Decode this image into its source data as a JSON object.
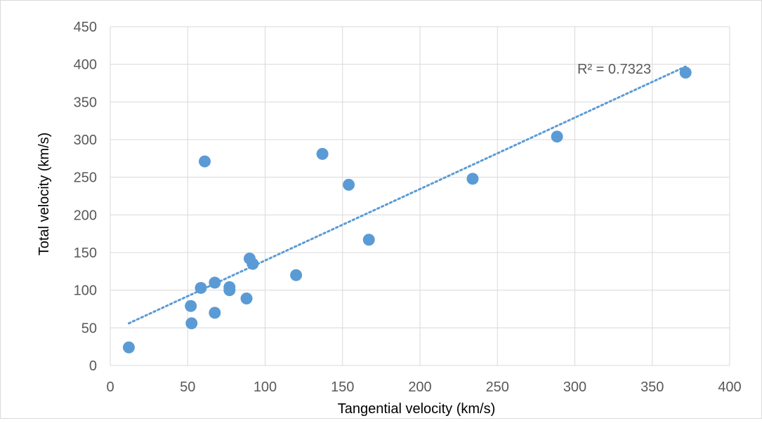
{
  "chart_data": {
    "type": "scatter",
    "title": "",
    "xlabel": "Tangential velocity (km/s)",
    "ylabel": "Total velocity (km/s)",
    "xlim": [
      0,
      400
    ],
    "ylim": [
      0,
      450
    ],
    "x_ticks": [
      0,
      50,
      100,
      150,
      200,
      250,
      300,
      350,
      400
    ],
    "y_ticks": [
      0,
      50,
      100,
      150,
      200,
      250,
      300,
      350,
      400,
      450
    ],
    "grid": "vertical and horizontal major gridlines",
    "legend": "none",
    "series": [
      {
        "color": "#5b9bd5",
        "points": [
          {
            "x": 12,
            "y": 24
          },
          {
            "x": 52,
            "y": 79
          },
          {
            "x": 52.5,
            "y": 56
          },
          {
            "x": 58.5,
            "y": 103
          },
          {
            "x": 61,
            "y": 271
          },
          {
            "x": 67.5,
            "y": 110
          },
          {
            "x": 67.5,
            "y": 70
          },
          {
            "x": 77,
            "y": 104
          },
          {
            "x": 77,
            "y": 100
          },
          {
            "x": 88,
            "y": 89
          },
          {
            "x": 90,
            "y": 142
          },
          {
            "x": 92,
            "y": 135
          },
          {
            "x": 120,
            "y": 120
          },
          {
            "x": 137,
            "y": 281
          },
          {
            "x": 154,
            "y": 240
          },
          {
            "x": 167,
            "y": 167
          },
          {
            "x": 234,
            "y": 248
          },
          {
            "x": 288.5,
            "y": 304
          },
          {
            "x": 371.5,
            "y": 389
          }
        ]
      }
    ],
    "trendline": {
      "type": "linear",
      "style": "dotted",
      "color": "#5b9bd5",
      "x_start": 12,
      "x_end": 371.5,
      "y_start": 56,
      "y_end": 397,
      "r2_label": "R² = 0.7323"
    }
  }
}
